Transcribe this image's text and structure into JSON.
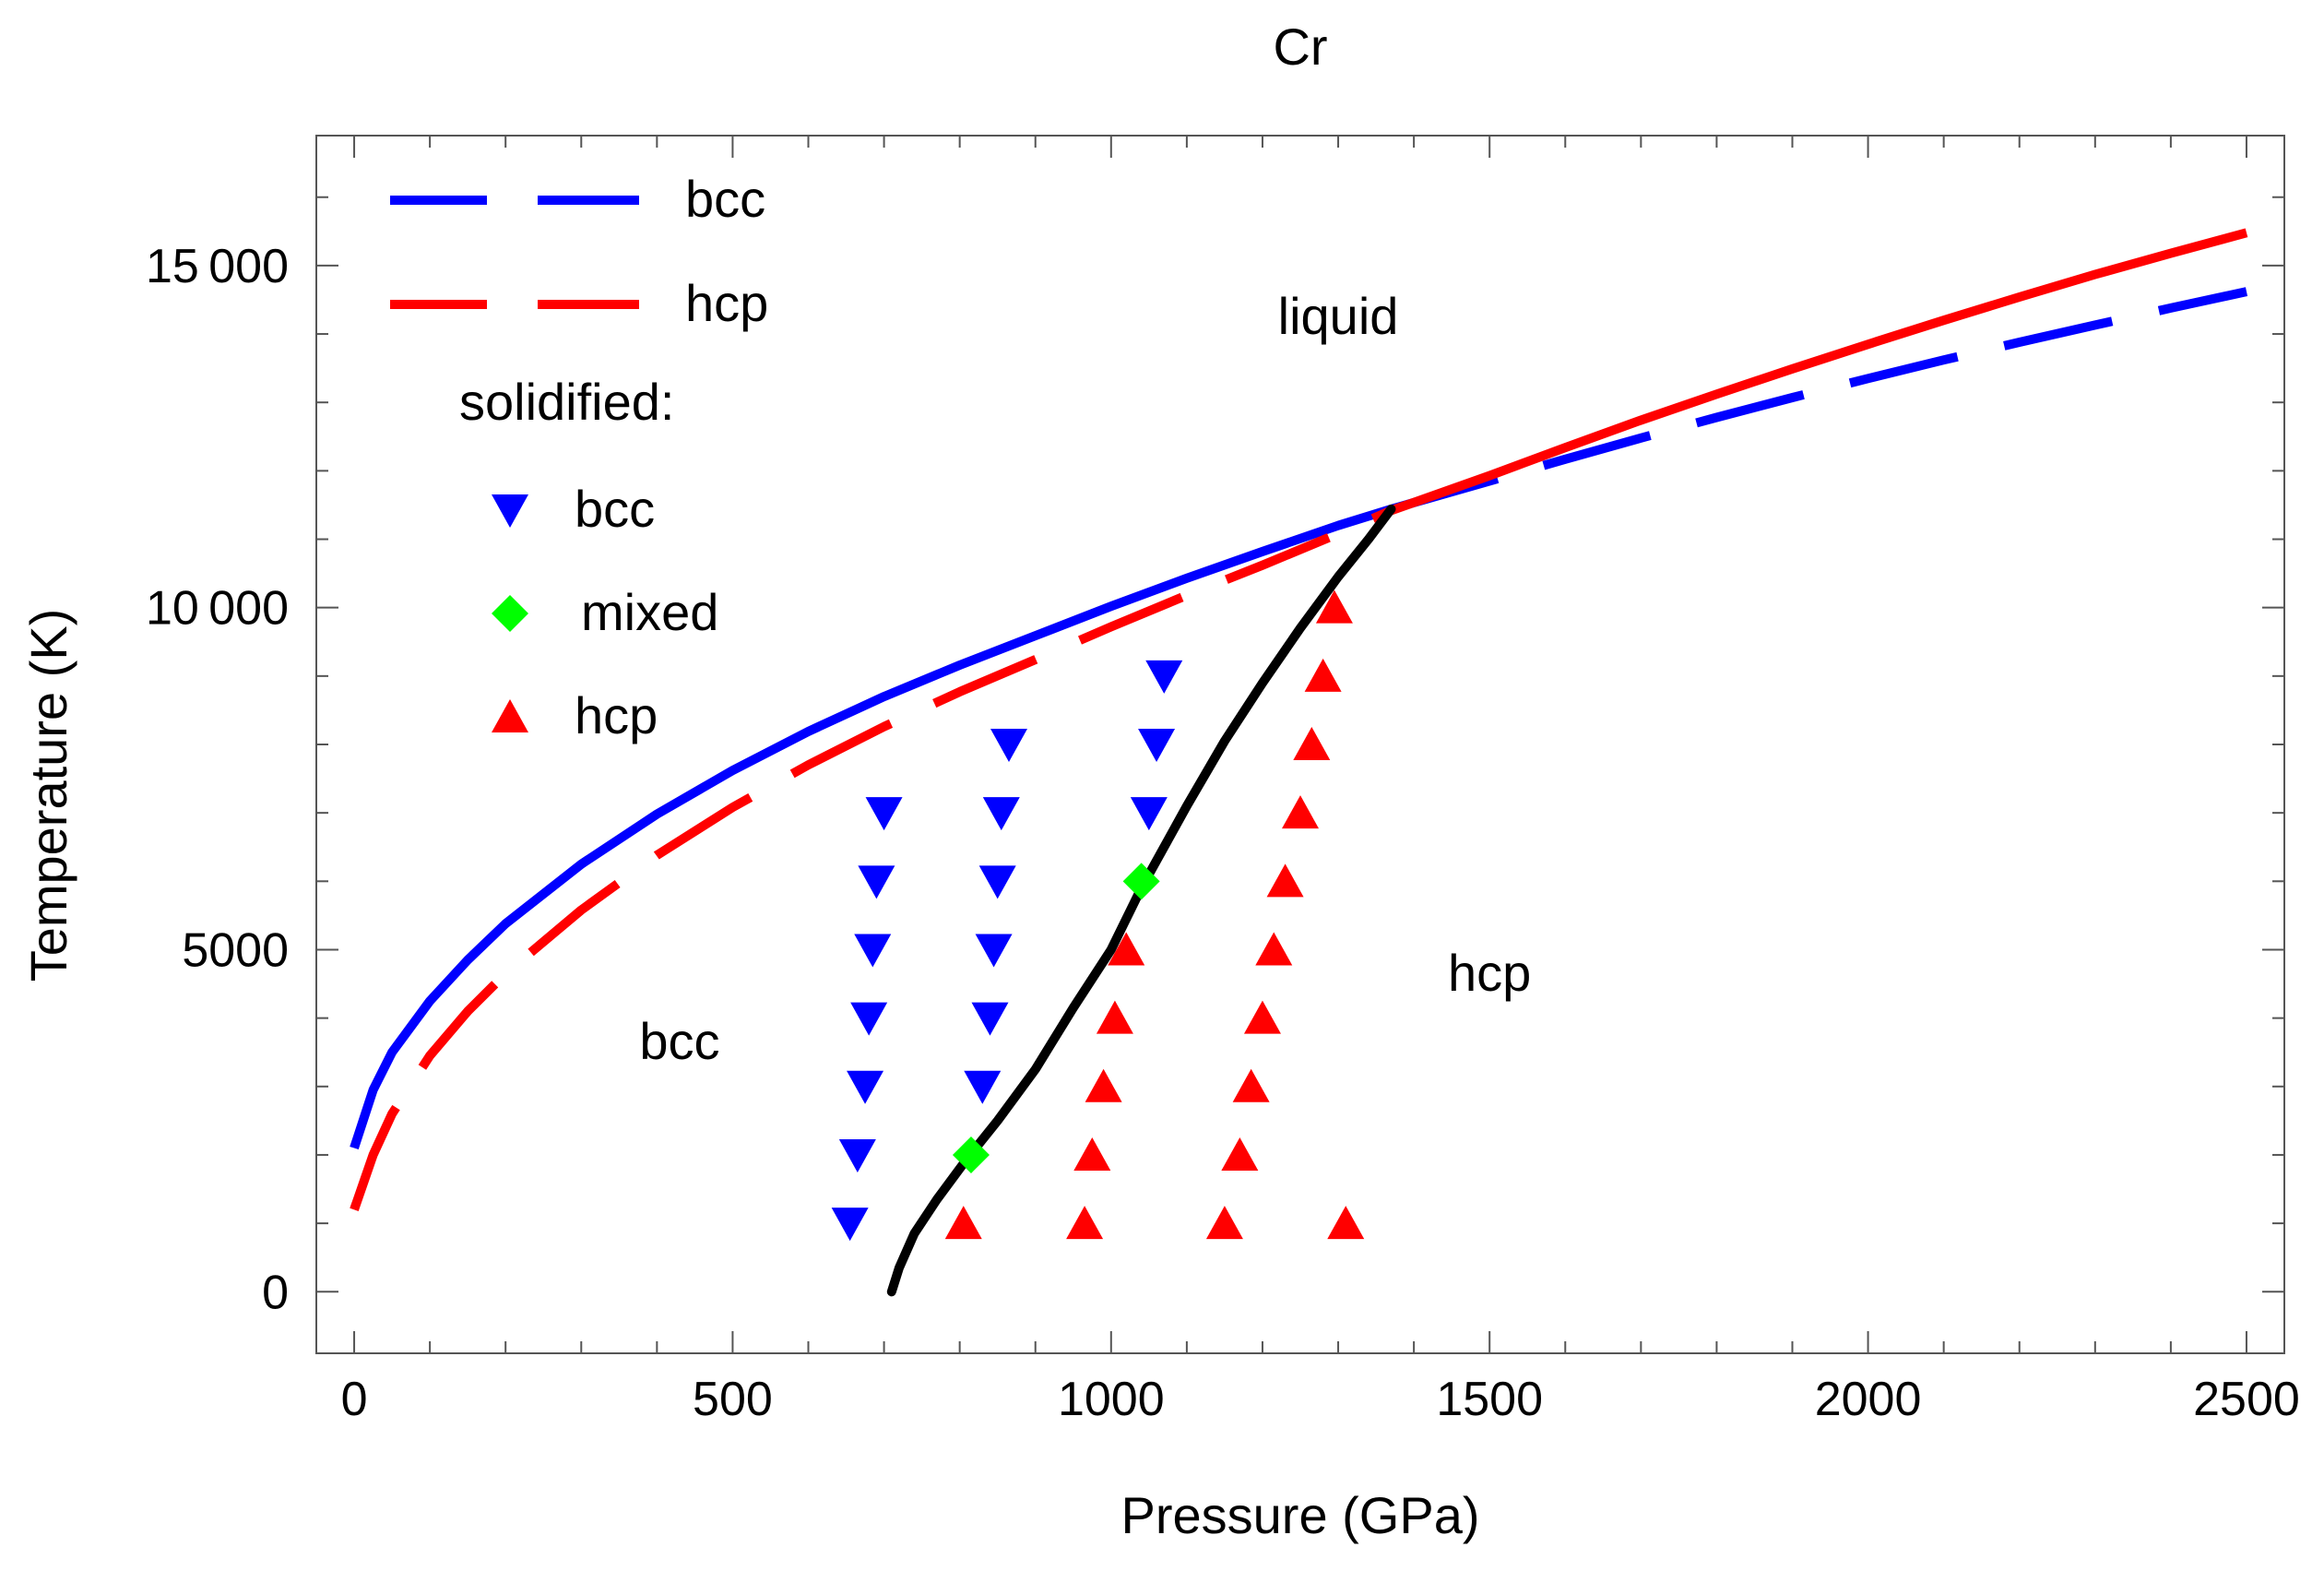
{
  "chart_data": {
    "type": "scatter",
    "title": "Cr",
    "xlabel": "Pressure (GPa)",
    "ylabel": "Temperature (K)",
    "xlim": [
      -50,
      2550
    ],
    "ylim": [
      -900,
      16900
    ],
    "x_ticks": [
      {
        "value": 0,
        "label": "0"
      },
      {
        "value": 500,
        "label": "500"
      },
      {
        "value": 1000,
        "label": "1000"
      },
      {
        "value": 1500,
        "label": "1500"
      },
      {
        "value": 2000,
        "label": "2000"
      },
      {
        "value": 2500,
        "label": "2500"
      }
    ],
    "y_ticks": [
      {
        "value": 0,
        "label": "0"
      },
      {
        "value": 5000,
        "label": "5000"
      },
      {
        "value": 10000,
        "label": "10 000"
      },
      {
        "value": 15000,
        "label": "15 000"
      }
    ],
    "lines": [
      {
        "name": "bcc",
        "color": "#0000ff",
        "style": "solid-then-dashed",
        "switch_x": 1370,
        "x": [
          0,
          25,
          50,
          100,
          150,
          200,
          300,
          400,
          500,
          600,
          700,
          800,
          900,
          1000,
          1100,
          1200,
          1300,
          1370,
          1500,
          1600,
          1700,
          1800,
          1900,
          2000,
          2100,
          2200,
          2300,
          2400,
          2500
        ],
        "y": [
          2100,
          2950,
          3500,
          4250,
          4850,
          5380,
          6250,
          6980,
          7620,
          8190,
          8700,
          9160,
          9590,
          10020,
          10430,
          10820,
          11200,
          11440,
          11850,
          12170,
          12480,
          12780,
          13070,
          13350,
          13620,
          13880,
          14130,
          14380,
          14620
        ]
      },
      {
        "name": "hcp",
        "color": "#ff0000",
        "style": "dashed-then-solid",
        "switch_x": 1370,
        "x": [
          0,
          25,
          50,
          100,
          150,
          200,
          300,
          400,
          500,
          600,
          700,
          800,
          900,
          1000,
          1100,
          1200,
          1300,
          1370,
          1500,
          1600,
          1700,
          1800,
          1900,
          2000,
          2100,
          2200,
          2300,
          2400,
          2500
        ],
        "y": [
          1200,
          2000,
          2600,
          3450,
          4100,
          4650,
          5580,
          6380,
          7080,
          7700,
          8260,
          8770,
          9240,
          9720,
          10180,
          10620,
          11080,
          11420,
          11930,
          12340,
          12740,
          13120,
          13490,
          13850,
          14200,
          14540,
          14870,
          15180,
          15480
        ]
      },
      {
        "name": "bcc-hcp boundary",
        "color": "#000000",
        "style": "solid",
        "x": [
          710,
          720,
          740,
          770,
          810,
          850,
          900,
          950,
          1000,
          1040,
          1100,
          1150,
          1200,
          1250,
          1300,
          1340,
          1370
        ],
        "y": [
          0,
          350,
          850,
          1350,
          1950,
          2500,
          3250,
          4150,
          5000,
          5900,
          7100,
          8050,
          8900,
          9700,
          10450,
          11000,
          11440
        ]
      }
    ],
    "series": [
      {
        "name": "bcc",
        "marker": "triangle-down",
        "color": "#0000ff",
        "x": [
          655,
          665,
          675,
          680,
          685,
          690,
          700,
          830,
          840,
          845,
          850,
          855,
          865,
          1050,
          1060,
          1070
        ],
        "y": [
          1000,
          2000,
          3000,
          4000,
          5000,
          6000,
          7000,
          3000,
          4000,
          5000,
          6000,
          7000,
          8000,
          7000,
          8000,
          9000
        ]
      },
      {
        "name": "mixed",
        "marker": "diamond",
        "color": "#00ff00",
        "x": [
          815,
          1040
        ],
        "y": [
          2000,
          6000
        ]
      },
      {
        "name": "hcp",
        "marker": "triangle-up",
        "color": "#ff0000",
        "x": [
          805,
          965,
          975,
          990,
          1005,
          1020,
          1150,
          1170,
          1185,
          1200,
          1215,
          1230,
          1250,
          1265,
          1280,
          1295,
          1310
        ],
        "y": [
          1000,
          1000,
          2000,
          3000,
          4000,
          5000,
          1000,
          2000,
          3000,
          4000,
          5000,
          6000,
          7000,
          8000,
          9000,
          10000,
          1000
        ]
      }
    ],
    "legend": {
      "placement": "top-left",
      "line_entries": [
        {
          "label": "bcc",
          "color": "#0000ff",
          "style": "dashed"
        },
        {
          "label": "hcp",
          "color": "#ff0000",
          "style": "dashed"
        }
      ],
      "section_title": "solidified:",
      "marker_entries": [
        {
          "label": "bcc",
          "marker": "triangle-down",
          "color": "#0000ff"
        },
        {
          "label": "mixed",
          "marker": "diamond",
          "color": "#00ff00"
        },
        {
          "label": "hcp",
          "marker": "triangle-up",
          "color": "#ff0000"
        }
      ]
    },
    "annotations": [
      {
        "text": "liquid",
        "x": 1300,
        "y": 14000
      },
      {
        "text": "hcp",
        "x": 1500,
        "y": 4400
      },
      {
        "text": "bcc",
        "x": 430,
        "y": 3400
      }
    ]
  }
}
